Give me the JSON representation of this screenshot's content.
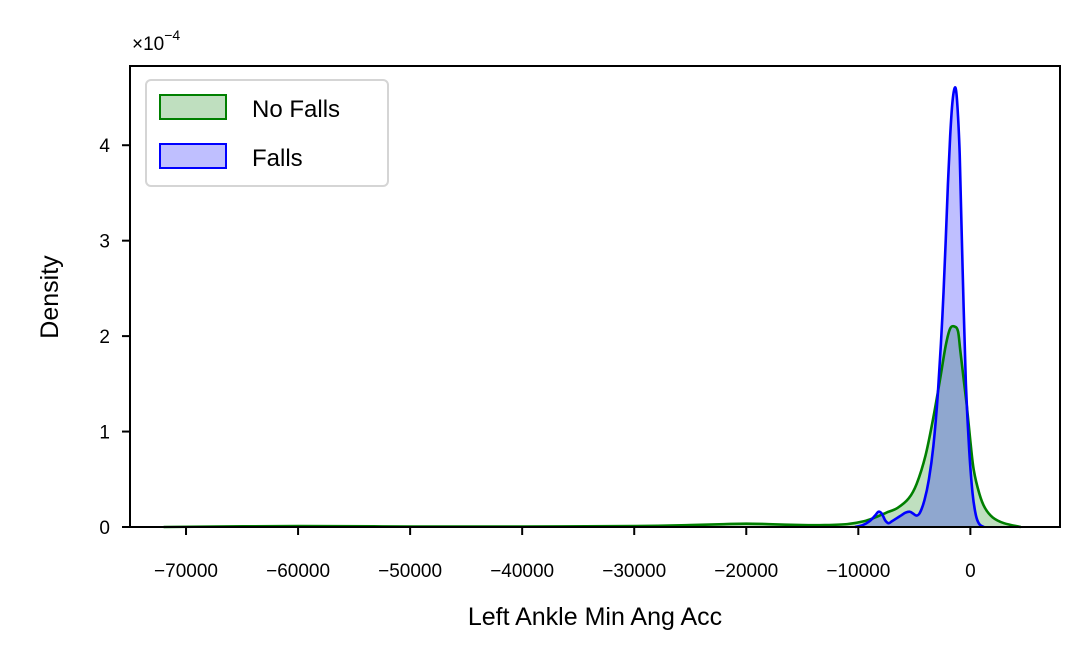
{
  "chart_data": {
    "type": "area",
    "title": "",
    "xlabel": "Left Ankle Min Ang Acc",
    "ylabel": "Density",
    "y_scale_label": "×10",
    "y_scale_exponent": "−4",
    "xlim": [
      -75000,
      8000
    ],
    "ylim": [
      0,
      4.83
    ],
    "x_ticks": [
      {
        "value": -70000,
        "label": "−70000"
      },
      {
        "value": -60000,
        "label": "−60000"
      },
      {
        "value": -50000,
        "label": "−50000"
      },
      {
        "value": -40000,
        "label": "−40000"
      },
      {
        "value": -30000,
        "label": "−30000"
      },
      {
        "value": -20000,
        "label": "−20000"
      },
      {
        "value": -10000,
        "label": "−10000"
      },
      {
        "value": 0,
        "label": "0"
      }
    ],
    "y_ticks": [
      {
        "value": 0,
        "label": "0"
      },
      {
        "value": 1,
        "label": "1"
      },
      {
        "value": 2,
        "label": "2"
      },
      {
        "value": 3,
        "label": "3"
      },
      {
        "value": 4,
        "label": "4"
      }
    ],
    "grid": false,
    "legend_position": "top-left",
    "series": [
      {
        "name": "No Falls",
        "color": "#008000",
        "fill": "#bfdfbf",
        "x": [
          -72000,
          -60000,
          -50000,
          -40000,
          -30000,
          -25000,
          -22000,
          -20000,
          -18000,
          -15000,
          -13000,
          -11000,
          -9500,
          -8500,
          -7500,
          -6500,
          -5500,
          -4800,
          -4000,
          -3300,
          -2700,
          -2200,
          -1800,
          -1400,
          -1100,
          -900,
          -600,
          -300,
          0,
          300,
          800,
          1300,
          2000,
          3000,
          4500
        ],
        "values": [
          0.0,
          0.01,
          0.005,
          0.005,
          0.01,
          0.02,
          0.03,
          0.035,
          0.03,
          0.02,
          0.02,
          0.03,
          0.06,
          0.1,
          0.15,
          0.2,
          0.3,
          0.45,
          0.75,
          1.15,
          1.55,
          1.9,
          2.08,
          2.1,
          2.05,
          1.85,
          1.55,
          1.25,
          0.9,
          0.6,
          0.35,
          0.2,
          0.1,
          0.04,
          0.0
        ]
      },
      {
        "name": "Falls",
        "color": "#0000ff",
        "fill": "#bfbfff",
        "x": [
          -10300,
          -9600,
          -9000,
          -8500,
          -8200,
          -7900,
          -7600,
          -7300,
          -7000,
          -6600,
          -6200,
          -5800,
          -5400,
          -5100,
          -4800,
          -4500,
          -4100,
          -3700,
          -3300,
          -2900,
          -2500,
          -2200,
          -2000,
          -1800,
          -1600,
          -1400,
          -1250,
          -1100,
          -950,
          -800,
          -600,
          -400,
          -100,
          200,
          500,
          800,
          1200
        ],
        "values": [
          0.0,
          0.02,
          0.06,
          0.12,
          0.16,
          0.14,
          0.07,
          0.04,
          0.06,
          0.09,
          0.12,
          0.15,
          0.16,
          0.14,
          0.12,
          0.15,
          0.28,
          0.5,
          0.85,
          1.4,
          2.2,
          3.0,
          3.6,
          4.1,
          4.45,
          4.6,
          4.55,
          4.3,
          3.9,
          3.2,
          2.3,
          1.5,
          0.8,
          0.35,
          0.12,
          0.03,
          0.0
        ]
      }
    ]
  }
}
